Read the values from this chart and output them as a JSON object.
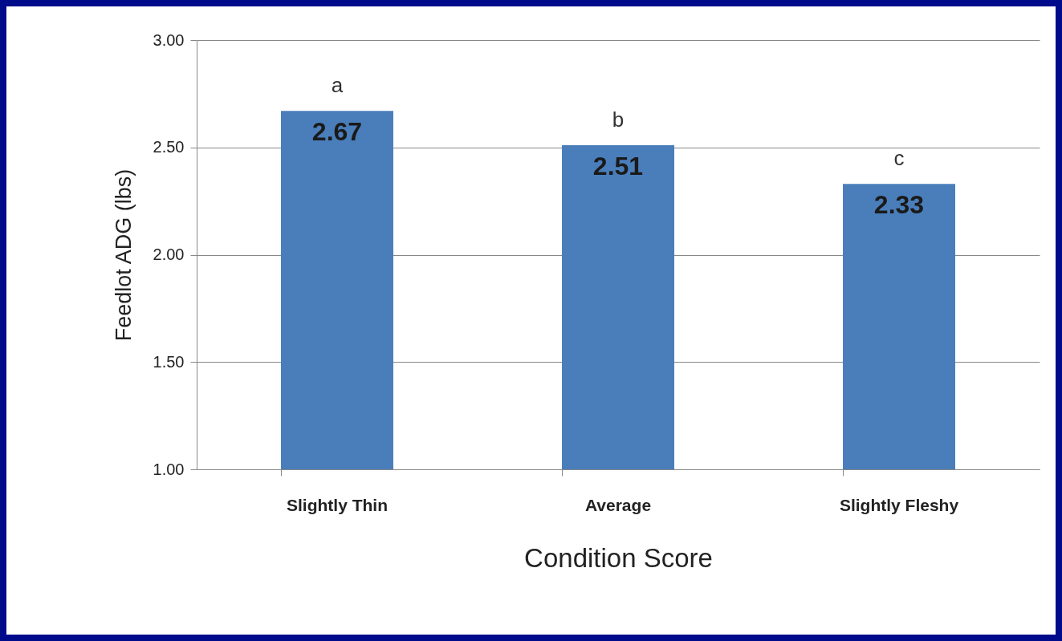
{
  "chart_data": {
    "type": "bar",
    "xlabel": "Condition Score",
    "ylabel": "Feedlot ADG  (lbs)",
    "categories": [
      "Slightly Thin",
      "Average",
      "Slightly Fleshy"
    ],
    "values": [
      2.67,
      2.51,
      2.33
    ],
    "color": "#4a7ebb",
    "ylim": [
      1,
      3
    ],
    "yticks": [
      {
        "value": 1,
        "label": "1.00"
      },
      {
        "value": 1.5,
        "label": "1.50"
      },
      {
        "value": 2,
        "label": "2.00"
      },
      {
        "value": 2.5,
        "label": "2.50"
      },
      {
        "value": 3,
        "label": "3.00"
      }
    ],
    "grid": "y",
    "data_labels": true,
    "annotations": [
      {
        "text": "a",
        "x": "Slightly Thin",
        "y": 2.67
      },
      {
        "text": "b",
        "x": "Average",
        "y": 2.51
      },
      {
        "text": "c",
        "x": "Slightly Fleshy",
        "y": 2.33
      }
    ]
  }
}
